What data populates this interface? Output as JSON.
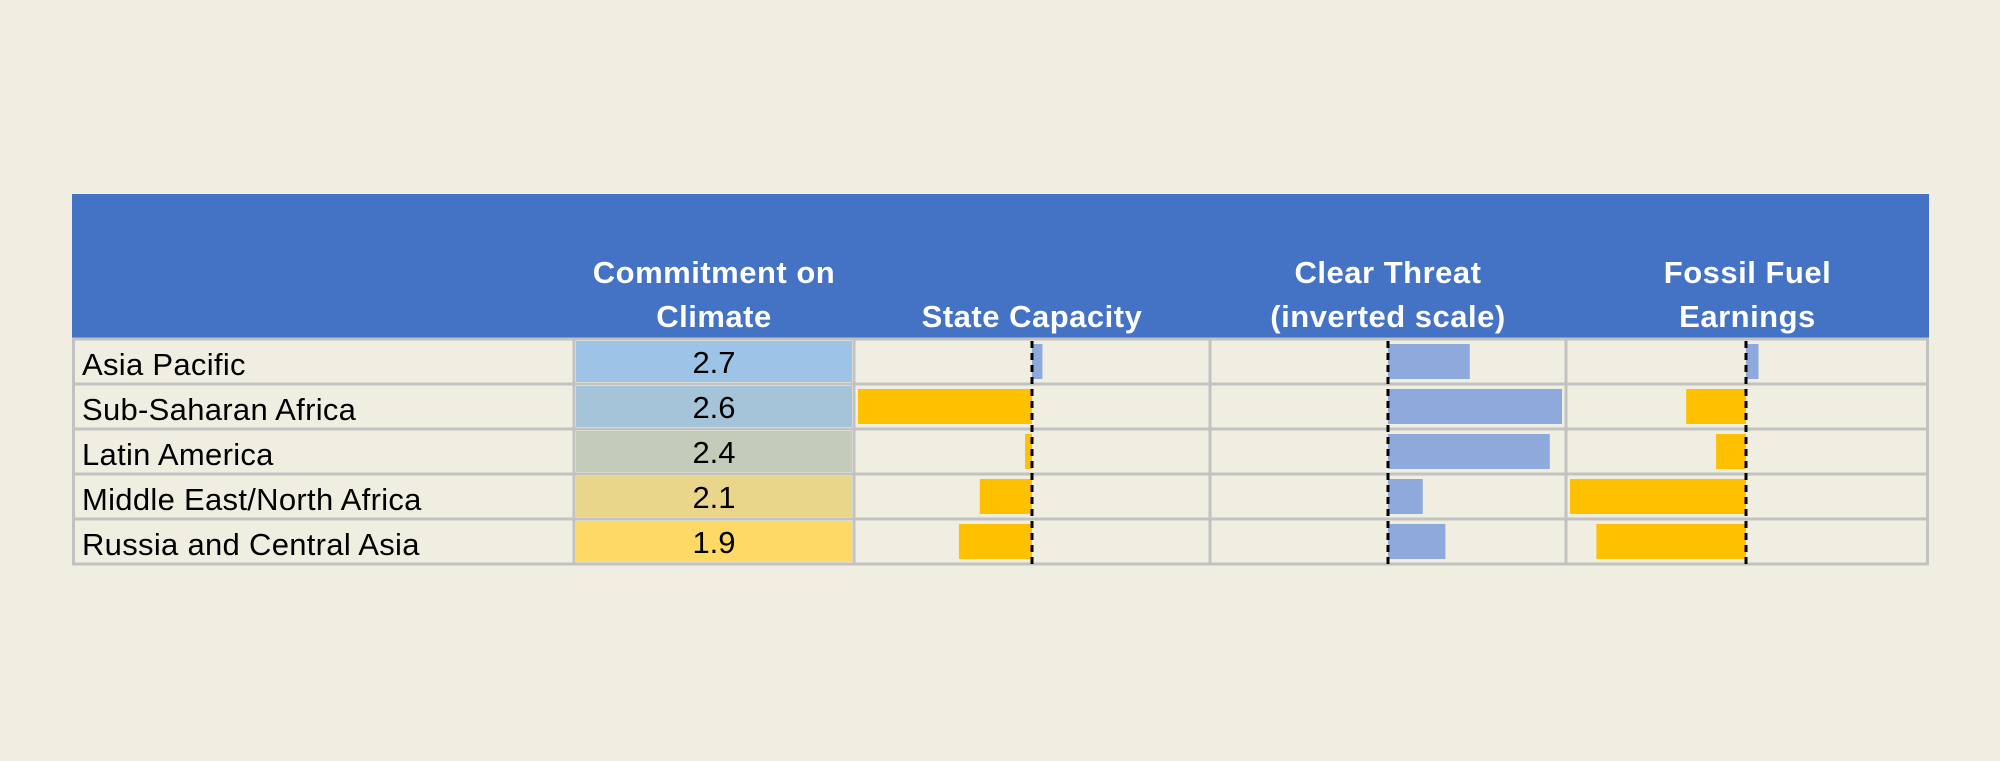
{
  "colors": {
    "header": "#4472C4",
    "background": "#F0EEE0",
    "grid": "#C2C2C2",
    "negative_bar": "#FFC000",
    "positive_bar": "#8EA9DB",
    "baseline": "#000000",
    "score_scale": [
      "#9DC3E6",
      "#A5C4D9",
      "#C2CCB9",
      "#E9D68B",
      "#FFD966"
    ]
  },
  "chart_data": {
    "type": "table",
    "columns": [
      {
        "key": "region",
        "label": ""
      },
      {
        "key": "commitment",
        "label": "Commitment on\nClimate"
      },
      {
        "key": "state_capacity",
        "label": "State Capacity"
      },
      {
        "key": "clear_threat",
        "label": "Clear Threat\n(inverted scale)"
      },
      {
        "key": "fossil_fuel",
        "label": "Fossil Fuel\nEarnings"
      }
    ],
    "rows": [
      {
        "region": "Asia Pacific",
        "commitment": "2.7",
        "state_capacity": 0.06,
        "clear_threat": 0.47,
        "fossil_fuel": 0.07
      },
      {
        "region": "Sub-Saharan Africa",
        "commitment": "2.6",
        "state_capacity": -1.0,
        "clear_threat": 1.0,
        "fossil_fuel": -0.34
      },
      {
        "region": "Latin America",
        "commitment": "2.4",
        "state_capacity": -0.04,
        "clear_threat": 0.93,
        "fossil_fuel": -0.17
      },
      {
        "region": "Middle East/North Africa",
        "commitment": "2.1",
        "state_capacity": -0.3,
        "clear_threat": 0.2,
        "fossil_fuel": -1.0
      },
      {
        "region": "Russia and Central Asia",
        "commitment": "1.9",
        "state_capacity": -0.42,
        "clear_threat": 0.33,
        "fossil_fuel": -0.85
      }
    ]
  }
}
